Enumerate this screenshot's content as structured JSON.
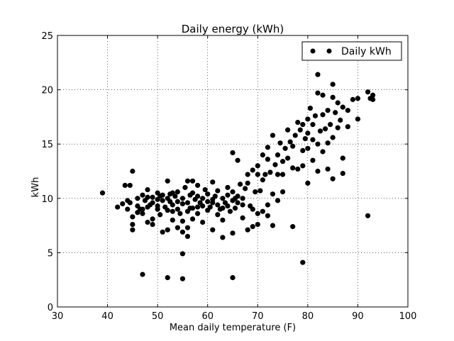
{
  "chart_data": {
    "type": "scatter",
    "title": "Daily energy (kWh)",
    "xlabel": "Mean daily temperature (F)",
    "ylabel": "kWh",
    "xlim": [
      30,
      100
    ],
    "ylim": [
      0,
      25
    ],
    "xticks": [
      30,
      40,
      50,
      60,
      70,
      80,
      90,
      100
    ],
    "yticks": [
      0,
      5,
      10,
      15,
      20,
      25
    ],
    "grid": true,
    "legend": {
      "position": "top-right",
      "entries": [
        "Daily kWh"
      ]
    },
    "series": [
      {
        "name": "Daily kWh",
        "color": "#000000",
        "marker": "circle",
        "points": [
          [
            39.0,
            10.5
          ],
          [
            42.0,
            9.2
          ],
          [
            43.0,
            9.5
          ],
          [
            43.5,
            11.2
          ],
          [
            44.0,
            9.0
          ],
          [
            44.5,
            9.6
          ],
          [
            44.5,
            11.2
          ],
          [
            45.0,
            12.5
          ],
          [
            45.0,
            8.3
          ],
          [
            45.0,
            7.6
          ],
          [
            45.0,
            7.1
          ],
          [
            46.0,
            9.3
          ],
          [
            46.0,
            8.7
          ],
          [
            46.0,
            10.0
          ],
          [
            47.0,
            9.0
          ],
          [
            47.0,
            10.3
          ],
          [
            47.0,
            8.6
          ],
          [
            47.5,
            9.8
          ],
          [
            48.0,
            7.8
          ],
          [
            48.0,
            9.2
          ],
          [
            48.0,
            10.8
          ],
          [
            48.5,
            9.4
          ],
          [
            49.0,
            9.6
          ],
          [
            49.0,
            8.1
          ],
          [
            49.0,
            10.1
          ],
          [
            49.0,
            7.6
          ],
          [
            50.0,
            9.0
          ],
          [
            50.0,
            9.9
          ],
          [
            50.0,
            10.5
          ],
          [
            50.0,
            9.3
          ],
          [
            50.5,
            8.5
          ],
          [
            51.0,
            9.8
          ],
          [
            51.0,
            10.3
          ],
          [
            51.0,
            6.9
          ],
          [
            51.5,
            9.2
          ],
          [
            52.0,
            10.0
          ],
          [
            52.0,
            11.6
          ],
          [
            52.0,
            7.1
          ],
          [
            52.0,
            8.9
          ],
          [
            52.5,
            9.7
          ],
          [
            52.5,
            10.4
          ],
          [
            53.0,
            9.4
          ],
          [
            53.0,
            8.8
          ],
          [
            53.0,
            8.0
          ],
          [
            53.5,
            10.2
          ],
          [
            54.0,
            9.0
          ],
          [
            54.0,
            9.7
          ],
          [
            54.0,
            10.6
          ],
          [
            54.0,
            7.3
          ],
          [
            54.5,
            8.6
          ],
          [
            55.0,
            10.0
          ],
          [
            55.0,
            9.5
          ],
          [
            55.0,
            6.9
          ],
          [
            55.0,
            7.9
          ],
          [
            55.5,
            11.0
          ],
          [
            56.0,
            9.6
          ],
          [
            56.0,
            8.8
          ],
          [
            56.0,
            11.6
          ],
          [
            56.0,
            7.3
          ],
          [
            56.0,
            6.5
          ],
          [
            56.5,
            10.3
          ],
          [
            57.0,
            9.1
          ],
          [
            57.0,
            10.5
          ],
          [
            57.0,
            8.1
          ],
          [
            57.0,
            11.6
          ],
          [
            57.5,
            9.9
          ],
          [
            58.0,
            9.2
          ],
          [
            58.0,
            10.2
          ],
          [
            58.0,
            8.6
          ],
          [
            58.5,
            9.6
          ],
          [
            59.0,
            10.0
          ],
          [
            59.0,
            7.8
          ],
          [
            59.0,
            9.3
          ],
          [
            59.5,
            10.8
          ],
          [
            60.0,
            9.7
          ],
          [
            60.0,
            8.9
          ],
          [
            60.0,
            10.4
          ],
          [
            60.5,
            9.2
          ],
          [
            61.0,
            9.9
          ],
          [
            61.0,
            11.5
          ],
          [
            61.0,
            7.1
          ],
          [
            61.5,
            10.2
          ],
          [
            62.0,
            9.4
          ],
          [
            62.0,
            8.5
          ],
          [
            62.0,
            10.7
          ],
          [
            62.5,
            9.0
          ],
          [
            63.0,
            10.0
          ],
          [
            63.0,
            8.0
          ],
          [
            63.0,
            6.4
          ],
          [
            63.5,
            9.6
          ],
          [
            64.0,
            9.3
          ],
          [
            64.0,
            11.0
          ],
          [
            64.0,
            10.3
          ],
          [
            64.5,
            8.8
          ],
          [
            65.0,
            9.8
          ],
          [
            65.0,
            14.2
          ],
          [
            65.0,
            6.8
          ],
          [
            65.0,
            10.6
          ],
          [
            65.5,
            9.1
          ],
          [
            66.0,
            10.2
          ],
          [
            66.0,
            13.5
          ],
          [
            66.0,
            9.6
          ],
          [
            66.5,
            11.3
          ],
          [
            67.0,
            10.0
          ],
          [
            67.0,
            8.2
          ],
          [
            67.5,
            10.9
          ],
          [
            68.0,
            12.2
          ],
          [
            68.0,
            7.1
          ],
          [
            68.0,
            11.4
          ],
          [
            68.5,
            9.3
          ],
          [
            69.0,
            12.6
          ],
          [
            69.0,
            9.0
          ],
          [
            69.0,
            7.4
          ],
          [
            69.5,
            10.6
          ],
          [
            70.0,
            12.2
          ],
          [
            70.0,
            13.0
          ],
          [
            70.0,
            8.6
          ],
          [
            70.0,
            7.6
          ],
          [
            70.5,
            10.7
          ],
          [
            71.0,
            11.7
          ],
          [
            71.0,
            14.0
          ],
          [
            71.0,
            8.8
          ],
          [
            71.5,
            12.2
          ],
          [
            72.0,
            13.6
          ],
          [
            72.0,
            14.7
          ],
          [
            72.0,
            9.4
          ],
          [
            72.0,
            8.4
          ],
          [
            72.5,
            12.4
          ],
          [
            73.0,
            15.8
          ],
          [
            73.0,
            10.4
          ],
          [
            73.0,
            7.5
          ],
          [
            73.5,
            13.1
          ],
          [
            74.0,
            12.2
          ],
          [
            74.0,
            14.0
          ],
          [
            74.0,
            9.8
          ],
          [
            74.5,
            15.1
          ],
          [
            75.0,
            13.4
          ],
          [
            75.0,
            10.6
          ],
          [
            75.0,
            12.2
          ],
          [
            75.5,
            14.6
          ],
          [
            76.0,
            13.7
          ],
          [
            76.0,
            16.3
          ],
          [
            76.5,
            15.2
          ],
          [
            77.0,
            12.8
          ],
          [
            77.0,
            14.8
          ],
          [
            77.0,
            7.4
          ],
          [
            77.5,
            15.8
          ],
          [
            78.0,
            17.0
          ],
          [
            78.0,
            12.7
          ],
          [
            78.5,
            16.3
          ],
          [
            79.0,
            14.4
          ],
          [
            79.0,
            16.8
          ],
          [
            79.0,
            13.0
          ],
          [
            79.0,
            4.1
          ],
          [
            79.5,
            15.5
          ],
          [
            80.0,
            16.0
          ],
          [
            80.0,
            17.3
          ],
          [
            80.0,
            11.4
          ],
          [
            80.0,
            14.6
          ],
          [
            80.5,
            18.3
          ],
          [
            81.0,
            15.4
          ],
          [
            81.0,
            16.8
          ],
          [
            81.0,
            13.5
          ],
          [
            81.5,
            17.6
          ],
          [
            82.0,
            19.7
          ],
          [
            82.0,
            21.4
          ],
          [
            82.0,
            15.0
          ],
          [
            82.0,
            12.5
          ],
          [
            82.5,
            16.2
          ],
          [
            83.0,
            17.7
          ],
          [
            83.0,
            19.5
          ],
          [
            83.0,
            14.3
          ],
          [
            83.5,
            16.4
          ],
          [
            84.0,
            18.1
          ],
          [
            84.0,
            15.1
          ],
          [
            84.0,
            12.7
          ],
          [
            84.5,
            16.8
          ],
          [
            85.0,
            19.3
          ],
          [
            85.0,
            20.5
          ],
          [
            85.0,
            15.6
          ],
          [
            85.0,
            11.8
          ],
          [
            85.5,
            17.9
          ],
          [
            86.0,
            18.8
          ],
          [
            86.0,
            16.5
          ],
          [
            86.5,
            17.2
          ],
          [
            87.0,
            18.4
          ],
          [
            87.0,
            13.7
          ],
          [
            87.0,
            12.3
          ],
          [
            88.0,
            18.1
          ],
          [
            88.0,
            16.6
          ],
          [
            89.0,
            19.1
          ],
          [
            90.0,
            19.2
          ],
          [
            90.0,
            17.3
          ],
          [
            92.0,
            19.8
          ],
          [
            92.0,
            8.4
          ],
          [
            92.5,
            19.2
          ],
          [
            93.0,
            19.5
          ],
          [
            93.0,
            19.1
          ],
          [
            47.0,
            3.0
          ],
          [
            52.0,
            2.7
          ],
          [
            55.0,
            2.6
          ],
          [
            55.0,
            4.9
          ],
          [
            65.0,
            2.7
          ],
          [
            44.0,
            9.8
          ],
          [
            46.5,
            9.0
          ],
          [
            48.0,
            10.1
          ],
          [
            50.5,
            10.2
          ],
          [
            53.0,
            10.5
          ],
          [
            56.5,
            9.1
          ],
          [
            58.0,
            11.2
          ],
          [
            61.0,
            9.6
          ],
          [
            63.0,
            9.1
          ],
          [
            65.5,
            10.0
          ],
          [
            67.0,
            9.4
          ]
        ]
      }
    ]
  }
}
